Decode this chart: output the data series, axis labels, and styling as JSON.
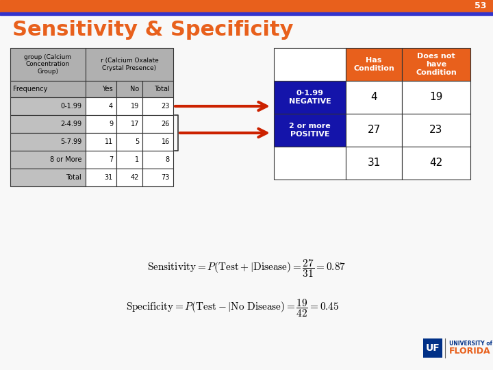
{
  "title": "Sensitivity & Specificity",
  "slide_number": "53",
  "bg_color": "#f8f8f8",
  "header_bar_color": "#e8601c",
  "header_bar_bottom_color": "#3333cc",
  "title_color": "#e8601c",
  "slide_num_color": "#ffffff",
  "left_table": {
    "col_headers": [
      "Yes",
      "No",
      "Total"
    ],
    "row_labels": [
      "0-1.99",
      "2-4.99",
      "5-7.99",
      "8 or More",
      "Total"
    ],
    "data": [
      [
        4,
        19,
        23
      ],
      [
        9,
        17,
        26
      ],
      [
        11,
        5,
        16
      ],
      [
        7,
        1,
        8
      ],
      [
        31,
        42,
        73
      ]
    ],
    "header_bg": "#b0b0b0",
    "subheader_bg": "#b0b0b0",
    "row_label_bg": "#c0c0c0",
    "total_label_bg": "#c0c0c0",
    "cell_bg": "#ffffff"
  },
  "right_table": {
    "col_headers": [
      "Has\nCondition",
      "Does not\nhave\nCondition"
    ],
    "col_header_bg": "#e8601c",
    "col_header_color": "#ffffff",
    "row_headers": [
      "0-1.99\nNEGATIVE",
      "2 or more\nPOSITIVE"
    ],
    "row_header_bg": "#1414aa",
    "row_header_color": "#ffffff",
    "data": [
      [
        4,
        19
      ],
      [
        27,
        23
      ]
    ],
    "totals": [
      31,
      42
    ],
    "cell_bg": "#ffffff"
  },
  "arrow_color": "#cc2200",
  "sens_latex": "\\mathrm{Sensitivity} = P(\\mathrm{Test}+|\\mathrm{Disease}) = \\dfrac{27}{31} = 0.87",
  "spec_latex": "\\mathrm{Specificity} = P(\\mathrm{Test}-|\\mathrm{No\\ Disease}) = \\dfrac{19}{42} = 0.45",
  "uf_box_color": "#003087",
  "uf_florida_color": "#e8601c",
  "uf_univ_color": "#003087"
}
